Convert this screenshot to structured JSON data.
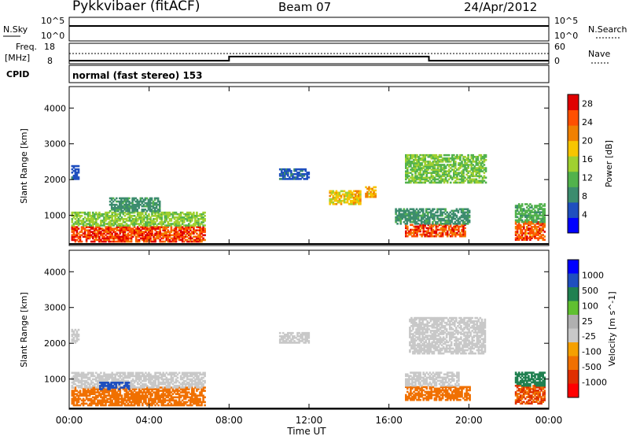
{
  "header": {
    "station": "Pykkvibaer (fitACF)",
    "beam": "Beam 07",
    "date": "24/Apr/2012"
  },
  "summary": {
    "nsky_label": "N.Sky",
    "nsky_ticks": [
      "10^5",
      "10^0"
    ],
    "nsearch_label": "N.Search",
    "nsearch_ticks": [
      "10^5",
      "10^0"
    ],
    "freq_label_line1": "Freq.",
    "freq_label_line2": "[MHz]",
    "freq_ticks": [
      "18",
      "8"
    ],
    "nave_label": "Nave",
    "nave_ticks": [
      "60",
      "0"
    ],
    "cpid_label": "CPID",
    "cpid_text": "normal (fast stereo) 153",
    "freq_steps": [
      {
        "start_h": 0.0,
        "end_h": 8.0,
        "freq_mhz": 9.5
      },
      {
        "start_h": 8.0,
        "end_h": 18.0,
        "freq_mhz": 11.5
      },
      {
        "start_h": 18.0,
        "end_h": 24.0,
        "freq_mhz": 9.5
      }
    ]
  },
  "colors": {
    "power": [
      "#0000ff",
      "#1f4fbf",
      "#3c8c6e",
      "#52b24c",
      "#a0d030",
      "#f7c500",
      "#f08000",
      "#ff5000",
      "#e00000"
    ],
    "velocity": [
      "#ff0000",
      "#e03000",
      "#f07000",
      "#f5a000",
      "#c8c8c8",
      "#b0b0b0",
      "#60c030",
      "#208050",
      "#1f4fbf",
      "#0000ff"
    ]
  },
  "chart_data": [
    {
      "type": "heatmap",
      "quantity": "power",
      "ylabel": "Slant Range [km]",
      "yticks": [
        1000,
        2000,
        3000,
        4000
      ],
      "ylim": [
        200,
        4600
      ],
      "xlim": [
        0,
        24
      ],
      "colorbar_label": "Power [dB]",
      "colorbar_ticks": [
        4,
        8,
        12,
        16,
        20,
        24,
        28
      ],
      "colorbar_range": [
        0,
        30
      ],
      "regions": [
        {
          "t0": 0.1,
          "t1": 6.8,
          "r0": 250,
          "r1": 700,
          "value": 26
        },
        {
          "t0": 0.1,
          "t1": 6.8,
          "r0": 700,
          "r1": 1100,
          "value": 14
        },
        {
          "t0": 2.0,
          "t1": 4.5,
          "r0": 1100,
          "r1": 1500,
          "value": 9
        },
        {
          "t0": 16.8,
          "t1": 19.8,
          "r0": 400,
          "r1": 750,
          "value": 25
        },
        {
          "t0": 16.3,
          "t1": 20.0,
          "r0": 750,
          "r1": 1200,
          "value": 9
        },
        {
          "t0": 16.8,
          "t1": 20.8,
          "r0": 1900,
          "r1": 2700,
          "value": 13
        },
        {
          "t0": 22.3,
          "t1": 23.8,
          "r0": 300,
          "r1": 800,
          "value": 24
        },
        {
          "t0": 22.3,
          "t1": 23.8,
          "r0": 800,
          "r1": 1300,
          "value": 11
        },
        {
          "t0": 10.5,
          "t1": 12.0,
          "r0": 2000,
          "r1": 2300,
          "value": 6
        },
        {
          "t0": 13.0,
          "t1": 14.6,
          "r0": 1300,
          "r1": 1700,
          "value": 18
        },
        {
          "t0": 14.8,
          "t1": 15.3,
          "r0": 1500,
          "r1": 1800,
          "value": 20
        },
        {
          "t0": 0.1,
          "t1": 0.5,
          "r0": 2000,
          "r1": 2400,
          "value": 6
        }
      ]
    },
    {
      "type": "heatmap",
      "quantity": "velocity",
      "xlabel": "Time UT",
      "ylabel": "Slant Range [km]",
      "xticks": [
        "00:00",
        "04:00",
        "08:00",
        "12:00",
        "16:00",
        "20:00",
        "00:00"
      ],
      "yticks": [
        1000,
        2000,
        3000,
        4000
      ],
      "ylim": [
        200,
        4600
      ],
      "xlim": [
        0,
        24
      ],
      "colorbar_label": "Velocity [m s^-1]",
      "colorbar_ticks": [
        1000,
        500,
        100,
        25,
        -25,
        -100,
        -500,
        -1000
      ],
      "regions": [
        {
          "t0": 0.1,
          "t1": 6.8,
          "r0": 250,
          "r1": 750,
          "value": -300
        },
        {
          "t0": 0.1,
          "t1": 6.8,
          "r0": 750,
          "r1": 1200,
          "value": 0
        },
        {
          "t0": 1.5,
          "t1": 3.0,
          "r0": 700,
          "r1": 900,
          "value": 700
        },
        {
          "t0": 16.8,
          "t1": 20.0,
          "r0": 400,
          "r1": 800,
          "value": -400
        },
        {
          "t0": 16.8,
          "t1": 19.5,
          "r0": 800,
          "r1": 1200,
          "value": 0
        },
        {
          "t0": 17.0,
          "t1": 20.8,
          "r0": 1700,
          "r1": 2700,
          "value": 0
        },
        {
          "t0": 22.3,
          "t1": 23.8,
          "r0": 300,
          "r1": 800,
          "value": -500
        },
        {
          "t0": 22.3,
          "t1": 23.8,
          "r0": 800,
          "r1": 1200,
          "value": 200
        },
        {
          "t0": 0.1,
          "t1": 0.5,
          "r0": 2000,
          "r1": 2400,
          "value": 0
        },
        {
          "t0": 10.5,
          "t1": 12.0,
          "r0": 2000,
          "r1": 2300,
          "value": 0
        }
      ]
    }
  ]
}
